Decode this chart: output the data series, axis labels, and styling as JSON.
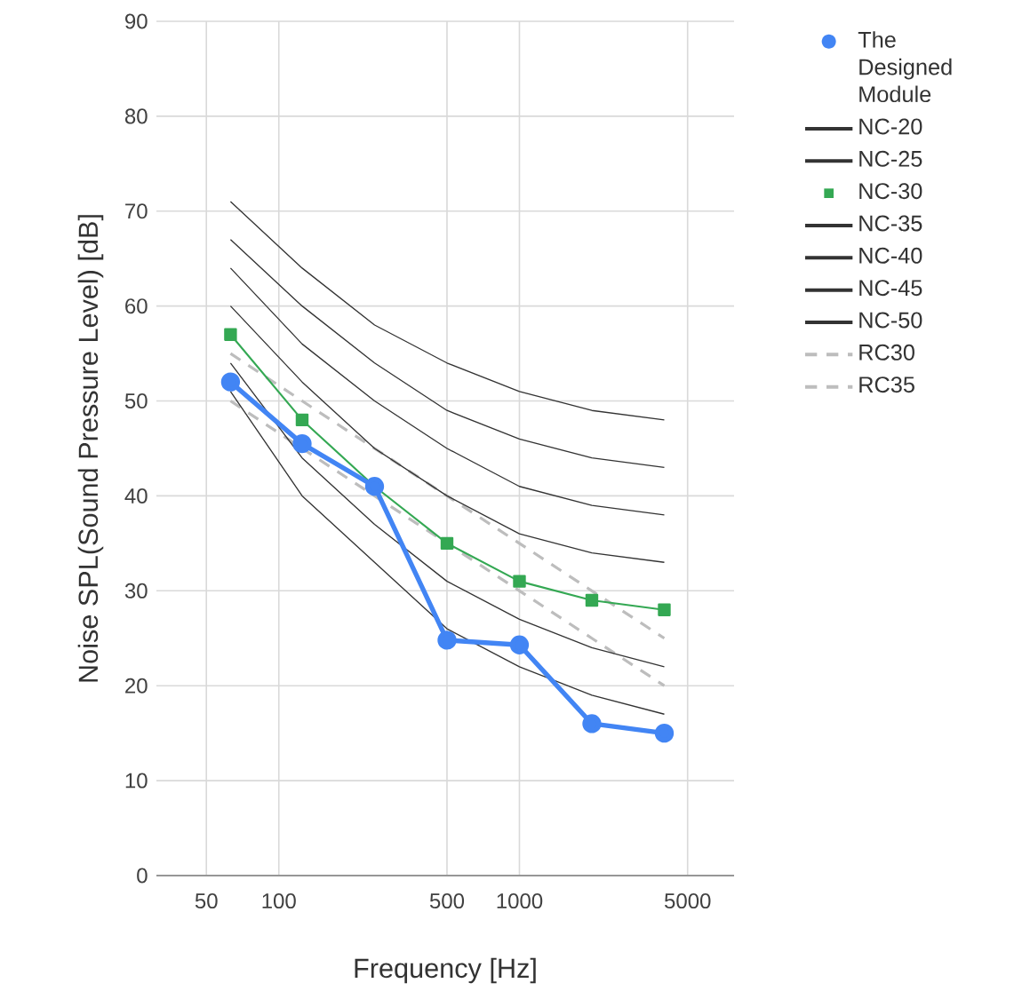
{
  "chart_data": {
    "type": "line",
    "xlabel": "Frequency [Hz]",
    "ylabel": "Noise SPL(Sound Pressure Level) [dB]",
    "log": "x",
    "grid": true,
    "legend": "right",
    "xlim": [
      31,
      7800
    ],
    "xticks": [
      50,
      100,
      500,
      1000,
      5000
    ],
    "ylim": [
      0,
      90
    ],
    "yticks": [
      0,
      10,
      20,
      30,
      40,
      50,
      60,
      70,
      80,
      90
    ],
    "x": [
      63,
      125,
      250,
      500,
      1000,
      2000,
      4000
    ],
    "series": [
      {
        "name": "The Designed Module",
        "color": "#4285f4",
        "marker": "circle",
        "line_style": "solid",
        "values": [
          52,
          45.5,
          41,
          24.8,
          24.3,
          16,
          15
        ]
      },
      {
        "name": "NC-20",
        "color": "#333333",
        "marker": "none",
        "line_style": "solid",
        "values": [
          51,
          40,
          33,
          26,
          22,
          19,
          17
        ]
      },
      {
        "name": "NC-25",
        "color": "#333333",
        "marker": "none",
        "line_style": "solid",
        "values": [
          54,
          44,
          37,
          31,
          27,
          24,
          22
        ]
      },
      {
        "name": "NC-30",
        "color": "#34a853",
        "marker": "square",
        "line_style": "solid",
        "values": [
          57,
          48,
          41,
          35,
          31,
          29,
          28
        ]
      },
      {
        "name": "NC-35",
        "color": "#333333",
        "marker": "none",
        "line_style": "solid",
        "values": [
          60,
          52,
          45,
          40,
          36,
          34,
          33
        ]
      },
      {
        "name": "NC-40",
        "color": "#333333",
        "marker": "none",
        "line_style": "solid",
        "values": [
          64,
          56,
          50,
          45,
          41,
          39,
          38
        ]
      },
      {
        "name": "NC-45",
        "color": "#333333",
        "marker": "none",
        "line_style": "solid",
        "values": [
          67,
          60,
          54,
          49,
          46,
          44,
          43
        ]
      },
      {
        "name": "NC-50",
        "color": "#333333",
        "marker": "none",
        "line_style": "solid",
        "values": [
          71,
          64,
          58,
          54,
          51,
          49,
          48
        ]
      },
      {
        "name": "RC30",
        "color": "#bdbdbd",
        "marker": "none",
        "line_style": "dashed",
        "values": [
          50,
          45,
          40,
          35,
          30,
          25,
          20
        ]
      },
      {
        "name": "RC35",
        "color": "#bdbdbd",
        "marker": "none",
        "line_style": "dashed",
        "values": [
          55,
          50,
          45,
          40,
          35,
          30,
          25
        ]
      }
    ]
  }
}
